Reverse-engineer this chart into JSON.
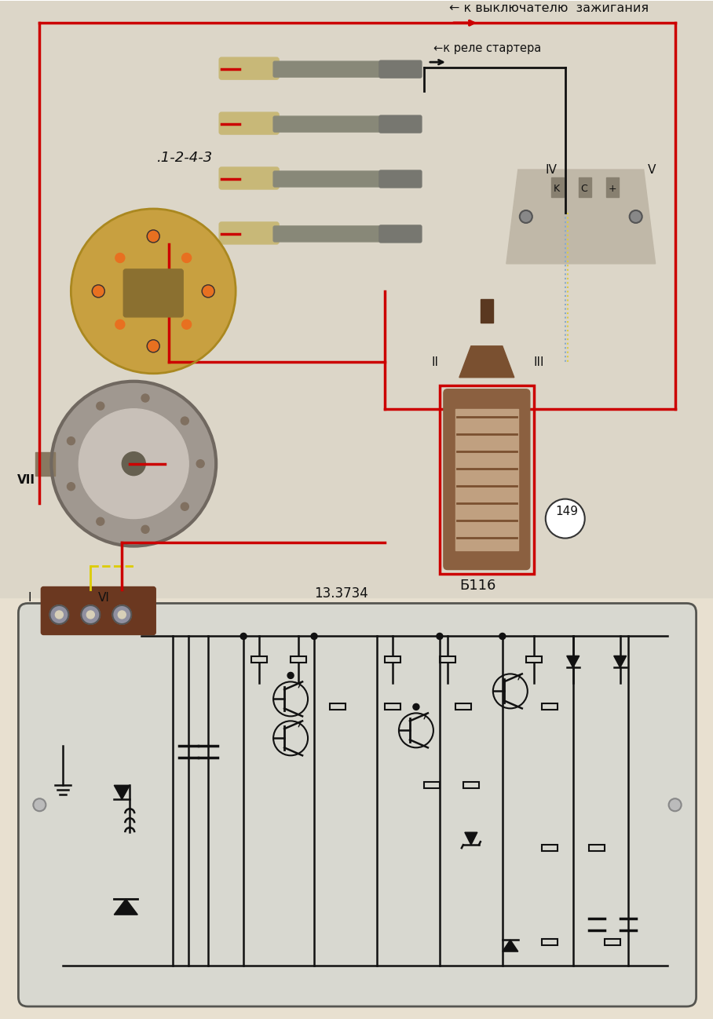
{
  "bg_color": "#e8e0d0",
  "label_k_vykl": "← к выключателю  зажигания",
  "label_k_rele": "←к реле стартера",
  "label_1243": ".1-2-4-3",
  "label_b116": "Б116",
  "label_149": "149",
  "label_13_3734": "13.3734",
  "label_I": "I",
  "label_II": "II",
  "label_III": "III",
  "label_IV": "IV",
  "label_V": "V",
  "label_VI": "VI",
  "label_VII": "VII",
  "label_K": "K",
  "label_C": "C",
  "label_plus": "+",
  "red_wire_color": "#cc0000",
  "black_wire_color": "#111111",
  "yellow_wire_color": "#ddaa00",
  "blue_wire_color": "#99bbdd"
}
